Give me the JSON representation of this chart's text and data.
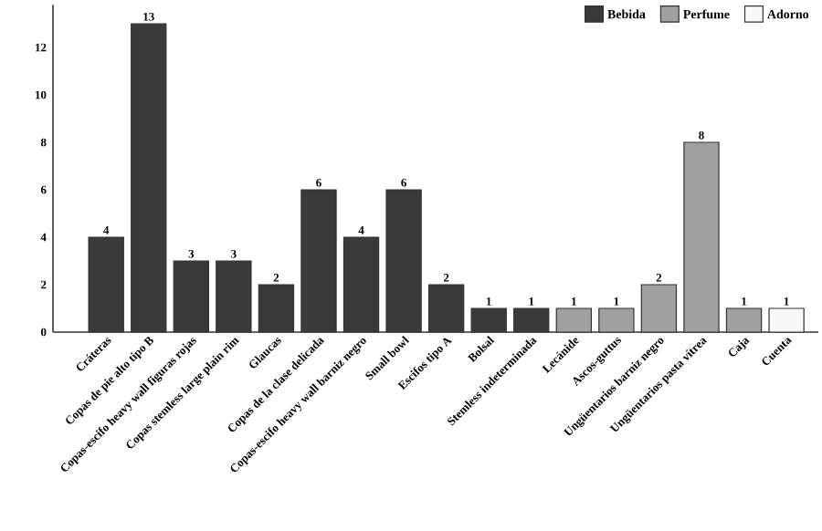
{
  "chart_data": {
    "type": "bar",
    "categories": [
      "Cráteras",
      "Copas de pie alto tipo B",
      "Copas-escifo heavy wall figuras rojas",
      "Copas stemless large plain rim",
      "Glaucas",
      "Copas de la clase delicada",
      "Copas-escifo heavy wall barniz negro",
      "Small bowl",
      "Escifos tipo A",
      "Bolsal",
      "Stemless indeterminada",
      "Lecánide",
      "Ascos-guttus",
      "Ungüentarios barniz negro",
      "Ungüentarios pasta vítrea",
      "Caja",
      "Cuenta"
    ],
    "series": [
      {
        "name": "Bebida",
        "color": "#3a3a3a",
        "values": [
          4,
          13,
          3,
          3,
          2,
          6,
          4,
          6,
          2,
          1,
          1,
          null,
          null,
          null,
          null,
          null,
          null
        ]
      },
      {
        "name": "Perfume",
        "color": "#a0a0a0",
        "values": [
          null,
          null,
          null,
          null,
          null,
          null,
          null,
          null,
          null,
          null,
          null,
          1,
          1,
          2,
          8,
          1,
          null
        ]
      },
      {
        "name": "Adorno",
        "color": "#f8f8f8",
        "values": [
          null,
          null,
          null,
          null,
          null,
          null,
          null,
          null,
          null,
          null,
          null,
          null,
          null,
          null,
          null,
          null,
          1
        ]
      }
    ],
    "ylim": [
      0,
      13.8
    ],
    "yticks": [
      0,
      2,
      4,
      6,
      8,
      10,
      12
    ],
    "data_labels": true,
    "legend": "top right",
    "grid": false
  }
}
